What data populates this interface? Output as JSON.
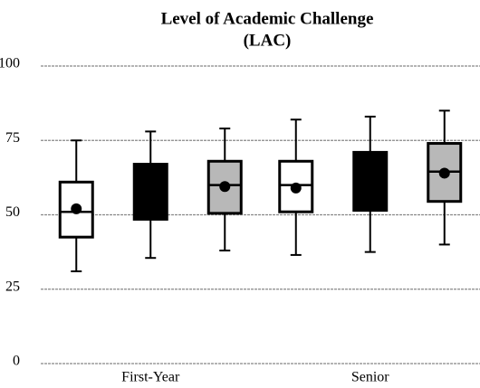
{
  "chart_data": {
    "type": "box",
    "title": "Level of Academic Challenge",
    "subtitle": "(LAC)",
    "categories": [
      "First-Year",
      "Senior"
    ],
    "ylim": [
      0,
      100
    ],
    "yticks": [
      0,
      25,
      50,
      75,
      100
    ],
    "grid": true,
    "series": [
      {
        "color": "#ffffff",
        "boxes": [
          {
            "low": 31,
            "q1": 42.5,
            "median": 51,
            "q3": 61,
            "high": 75,
            "mean": 52
          },
          {
            "low": 36.5,
            "q1": 51,
            "median": 60,
            "q3": 68,
            "high": 82,
            "mean": 59
          }
        ]
      },
      {
        "color": "#000000",
        "boxes": [
          {
            "low": 35.5,
            "q1": 48.5,
            "q3": 67,
            "high": 78
          },
          {
            "low": 37.5,
            "q1": 51.5,
            "q3": 71,
            "high": 83
          }
        ]
      },
      {
        "color": "#b8b8b8",
        "boxes": [
          {
            "low": 38,
            "q1": 50.5,
            "median": 60,
            "q3": 68,
            "high": 79,
            "mean": 59.5
          },
          {
            "low": 40,
            "q1": 54.5,
            "median": 64.5,
            "q3": 74,
            "high": 85,
            "mean": 64
          }
        ]
      }
    ]
  }
}
